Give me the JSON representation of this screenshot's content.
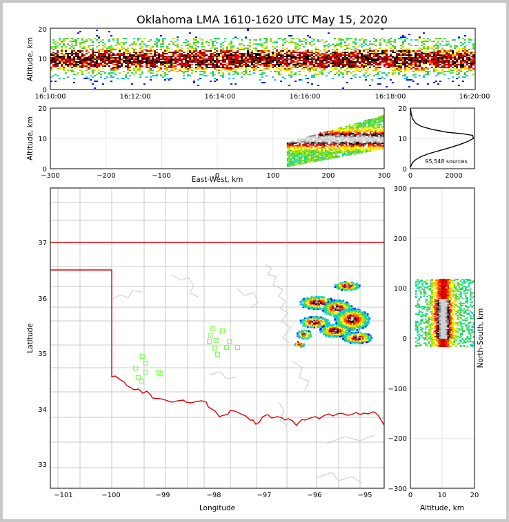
{
  "chart_data": [
    {
      "type": "heatmap",
      "panel": "altitude-vs-time",
      "title": "Oklahoma LMA 1610-1620 UTC May 15, 2020",
      "ylabel": "Altitude, km",
      "ylim": [
        0,
        20
      ],
      "yticks": [
        "0",
        "10",
        "20"
      ],
      "xticks": [
        "16:10:00",
        "16:12:00",
        "16:14:00",
        "16:16:00",
        "16:18:00",
        "16:20:00"
      ],
      "density_peak_altitude_km": 10
    },
    {
      "type": "heatmap",
      "panel": "altitude-vs-east-west",
      "ylabel": "Altitude, km",
      "xlabel": "East-West, km",
      "xlim": [
        -300,
        300
      ],
      "ylim": [
        0,
        20
      ],
      "xticks": [
        "−300",
        "−200",
        "−100",
        "0",
        "100",
        "200",
        "300"
      ],
      "yticks": [
        "0",
        "10",
        "20"
      ],
      "x_extent_km": [
        125,
        300
      ]
    },
    {
      "type": "line",
      "panel": "altitude-histogram",
      "xlim": [
        0,
        2400
      ],
      "ylim": [
        0,
        20
      ],
      "xticks": [
        "0",
        "2000"
      ],
      "yticks": [
        "0",
        "10",
        "20"
      ],
      "annotation": "95,548 sources",
      "profile": [
        [
          0,
          0.5
        ],
        [
          80,
          2
        ],
        [
          200,
          3
        ],
        [
          400,
          4
        ],
        [
          700,
          5
        ],
        [
          1100,
          6
        ],
        [
          1500,
          7
        ],
        [
          1850,
          8
        ],
        [
          2150,
          9
        ],
        [
          2360,
          10
        ],
        [
          2330,
          11
        ],
        [
          2000,
          11.5
        ],
        [
          1400,
          12
        ],
        [
          800,
          13
        ],
        [
          400,
          14
        ],
        [
          200,
          15
        ],
        [
          80,
          16.5
        ],
        [
          30,
          18
        ],
        [
          10,
          19.5
        ],
        [
          0,
          20
        ]
      ]
    },
    {
      "type": "heatmap",
      "panel": "plan-view-map",
      "xlabel": "Longitude",
      "ylabel": "Latitude",
      "xlim": [
        -101.25,
        -94.6
      ],
      "ylim": [
        32.6,
        38
      ],
      "xticks": [
        "−101",
        "−100",
        "−99",
        "−98",
        "−97",
        "−96",
        "−95"
      ],
      "yticks": [
        "33",
        "34",
        "35",
        "36",
        "37"
      ],
      "stations": [
        [
          -98.02,
          35.47
        ],
        [
          -97.82,
          35.43
        ],
        [
          -98.06,
          35.35
        ],
        [
          -97.95,
          35.26
        ],
        [
          -98.08,
          35.24
        ],
        [
          -97.68,
          35.24
        ],
        [
          -97.98,
          35.12
        ],
        [
          -97.74,
          35.13
        ],
        [
          -97.52,
          35.13
        ],
        [
          -97.92,
          35.01
        ],
        [
          -99.42,
          34.97
        ],
        [
          -99.35,
          34.85
        ],
        [
          -99.55,
          34.76
        ],
        [
          -99.35,
          34.69
        ],
        [
          -99.09,
          34.69
        ],
        [
          -99.05,
          34.66
        ],
        [
          -99.5,
          34.59
        ],
        [
          -99.43,
          34.53
        ]
      ]
    },
    {
      "type": "heatmap",
      "panel": "north-south-vs-altitude",
      "xlabel": "Altitude, km",
      "ylabel": "North-South, km",
      "xlim": [
        0,
        20
      ],
      "ylim": [
        -300,
        300
      ],
      "xticks": [
        "0",
        "10",
        "20"
      ],
      "yticks": [
        "−300",
        "−200",
        "−100",
        "0",
        "100",
        "200",
        "300"
      ],
      "y_extent_km": [
        -15,
        120
      ]
    }
  ],
  "colors": {
    "border": "#e00000",
    "county": "#c8c8c8",
    "station": "#7fff4f",
    "grid": "#e6e6e6"
  }
}
